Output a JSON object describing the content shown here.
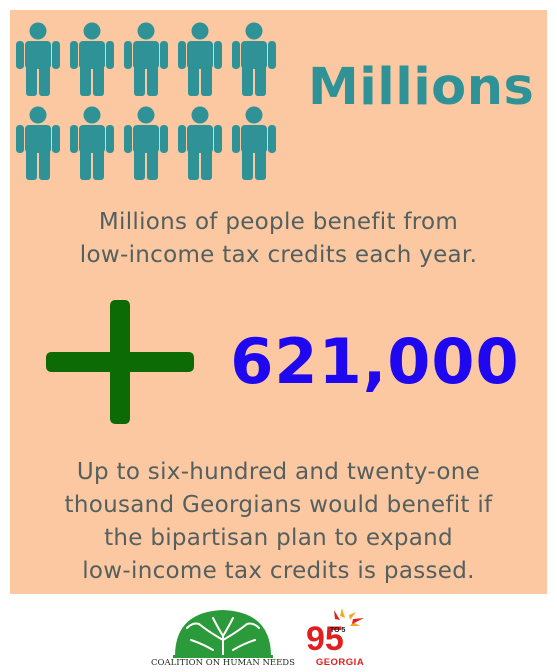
{
  "headline": "Millions",
  "benefit_text": [
    "Millions of people benefit from",
    "low-income tax credits each year."
  ],
  "big_number": "621,000",
  "expand_text": [
    "Up to six-hundred and twenty-one",
    "thousand Georgians would benefit if",
    "the bipartisan plan to expand",
    "low-income tax credits is passed."
  ],
  "icons": {
    "people": "person-icon",
    "plus": "plus-icon",
    "tree_logo": "tree-logo",
    "logo_95": "95-to-5-logo"
  },
  "logos": {
    "chn_name": "COALITION ON HUMAN NEEDS",
    "logo_95_word": "GEORGIA",
    "logo_95_big": "95",
    "logo_95_small": "TO 5"
  },
  "colors": {
    "panel_bg": "#fcc8a2",
    "teal": "#2f9297",
    "text_gray": "#53605f",
    "number_blue": "#1f07ef",
    "plus_green": "#0d6b06",
    "logo_green": "#2b9a3a",
    "logo_red": "#e02020"
  }
}
